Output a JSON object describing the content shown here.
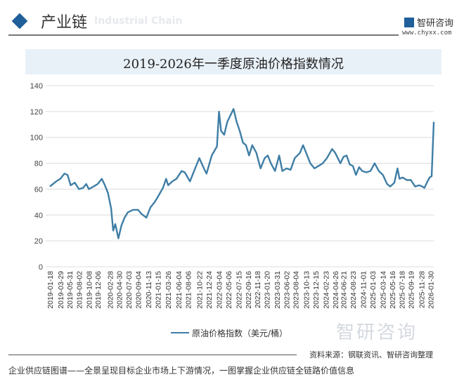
{
  "header": {
    "title": "产业链",
    "subtitle": "Industrial Chain",
    "logo_name": "智研咨询",
    "logo_url": "www.chyxx.com"
  },
  "chart_data": {
    "type": "line",
    "title": "2019-2026年一季度原油价格指数情况",
    "ylim": [
      0,
      140
    ],
    "yticks": [
      0,
      20,
      40,
      60,
      80,
      100,
      120,
      140
    ],
    "grid": true,
    "legend_position": "bottom",
    "xtick_labels": [
      "2019-01-18",
      "2019-03-29",
      "2019-05-31",
      "2019-08-02",
      "2019-10-08",
      "2019-12-06",
      "2020-02-28",
      "2020-04-30",
      "2020-07-03",
      "2020-09-04",
      "2020-11-13",
      "2021-01-15",
      "2021-03-26",
      "2021-06-04",
      "2021-08-06",
      "2021-10-22",
      "2021-12-24",
      "2022-03-04",
      "2022-05-06",
      "2022-07-15",
      "2022-09-16",
      "2022-11-18",
      "2023-01-20",
      "2023-03-31",
      "2023-06-02",
      "2023-08-04",
      "2023-10-13",
      "2023-12-15",
      "2024-02-23",
      "2024-04-26",
      "2024-06-21",
      "2024-08-23",
      "2024-11-01",
      "2025-01-03",
      "2025-03-14",
      "2025-05-16",
      "2025-07-18",
      "2025-09-19",
      "2025-11-28",
      "2026-01-30"
    ],
    "series": [
      {
        "name": "原油价格指数（美元/桶）",
        "color": "#3f7ea6",
        "points": [
          [
            "2019-01-18",
            62
          ],
          [
            "2019-02-08",
            64
          ],
          [
            "2019-03-01",
            66
          ],
          [
            "2019-03-29",
            68
          ],
          [
            "2019-04-26",
            72
          ],
          [
            "2019-05-17",
            71
          ],
          [
            "2019-06-07",
            63
          ],
          [
            "2019-07-05",
            65
          ],
          [
            "2019-08-02",
            60
          ],
          [
            "2019-08-30",
            61
          ],
          [
            "2019-09-20",
            64
          ],
          [
            "2019-10-08",
            60
          ],
          [
            "2019-11-08",
            62
          ],
          [
            "2019-12-06",
            64
          ],
          [
            "2020-01-03",
            68
          ],
          [
            "2020-01-24",
            63
          ],
          [
            "2020-02-14",
            57
          ],
          [
            "2020-03-06",
            45
          ],
          [
            "2020-03-20",
            28
          ],
          [
            "2020-04-03",
            33
          ],
          [
            "2020-04-24",
            22
          ],
          [
            "2020-05-15",
            32
          ],
          [
            "2020-06-05",
            38
          ],
          [
            "2020-06-26",
            42
          ],
          [
            "2020-07-31",
            44
          ],
          [
            "2020-09-04",
            44
          ],
          [
            "2020-09-25",
            41
          ],
          [
            "2020-10-30",
            38
          ],
          [
            "2020-11-27",
            46
          ],
          [
            "2020-12-25",
            50
          ],
          [
            "2021-01-15",
            54
          ],
          [
            "2021-02-19",
            61
          ],
          [
            "2021-03-12",
            68
          ],
          [
            "2021-03-26",
            63
          ],
          [
            "2021-04-23",
            66
          ],
          [
            "2021-05-21",
            68
          ],
          [
            "2021-06-25",
            74
          ],
          [
            "2021-07-16",
            73
          ],
          [
            "2021-08-20",
            66
          ],
          [
            "2021-09-10",
            72
          ],
          [
            "2021-10-22",
            84
          ],
          [
            "2021-11-26",
            75
          ],
          [
            "2021-12-10",
            72
          ],
          [
            "2022-01-14",
            86
          ],
          [
            "2022-02-18",
            93
          ],
          [
            "2022-03-04",
            120
          ],
          [
            "2022-03-18",
            105
          ],
          [
            "2022-04-08",
            102
          ],
          [
            "2022-04-29",
            112
          ],
          [
            "2022-06-10",
            122
          ],
          [
            "2022-07-01",
            112
          ],
          [
            "2022-07-22",
            105
          ],
          [
            "2022-08-12",
            96
          ],
          [
            "2022-09-02",
            94
          ],
          [
            "2022-09-23",
            86
          ],
          [
            "2022-10-14",
            94
          ],
          [
            "2022-11-11",
            88
          ],
          [
            "2022-12-09",
            76
          ],
          [
            "2023-01-06",
            84
          ],
          [
            "2023-01-27",
            86
          ],
          [
            "2023-02-17",
            80
          ],
          [
            "2023-03-17",
            74
          ],
          [
            "2023-04-14",
            86
          ],
          [
            "2023-05-05",
            74
          ],
          [
            "2023-06-02",
            76
          ],
          [
            "2023-06-30",
            75
          ],
          [
            "2023-07-28",
            84
          ],
          [
            "2023-09-01",
            88
          ],
          [
            "2023-09-22",
            94
          ],
          [
            "2023-10-13",
            88
          ],
          [
            "2023-11-10",
            80
          ],
          [
            "2023-12-08",
            76
          ],
          [
            "2024-01-05",
            78
          ],
          [
            "2024-02-02",
            80
          ],
          [
            "2024-03-01",
            84
          ],
          [
            "2024-04-05",
            91
          ],
          [
            "2024-04-26",
            88
          ],
          [
            "2024-05-31",
            80
          ],
          [
            "2024-06-21",
            85
          ],
          [
            "2024-07-12",
            86
          ],
          [
            "2024-08-02",
            79
          ],
          [
            "2024-08-23",
            78
          ],
          [
            "2024-09-13",
            71
          ],
          [
            "2024-10-04",
            77
          ],
          [
            "2024-10-25",
            74
          ],
          [
            "2024-11-22",
            73
          ],
          [
            "2024-12-20",
            74
          ],
          [
            "2025-01-17",
            80
          ],
          [
            "2025-02-14",
            74
          ],
          [
            "2025-03-14",
            71
          ],
          [
            "2025-04-11",
            64
          ],
          [
            "2025-05-02",
            62
          ],
          [
            "2025-05-30",
            65
          ],
          [
            "2025-06-20",
            76
          ],
          [
            "2025-07-04",
            68
          ],
          [
            "2025-07-25",
            69
          ],
          [
            "2025-08-22",
            67
          ],
          [
            "2025-09-19",
            67
          ],
          [
            "2025-10-17",
            62
          ],
          [
            "2025-11-14",
            63
          ],
          [
            "2025-12-05",
            62
          ],
          [
            "2025-12-19",
            61
          ],
          [
            "2026-01-09",
            66
          ],
          [
            "2026-01-23",
            69
          ],
          [
            "2026-02-06",
            70
          ],
          [
            "2026-02-20",
            112
          ]
        ]
      }
    ]
  },
  "legend": {
    "label": "原油价格指数（美元/桶）"
  },
  "footer": {
    "source": "资料来源：钢联资讯、智研咨询整理",
    "tagline": "企业供应链图谱——全景呈现目标企业市场上下游情况，一图掌握企业供应链全链路价值信息",
    "watermark": "智研咨询"
  }
}
